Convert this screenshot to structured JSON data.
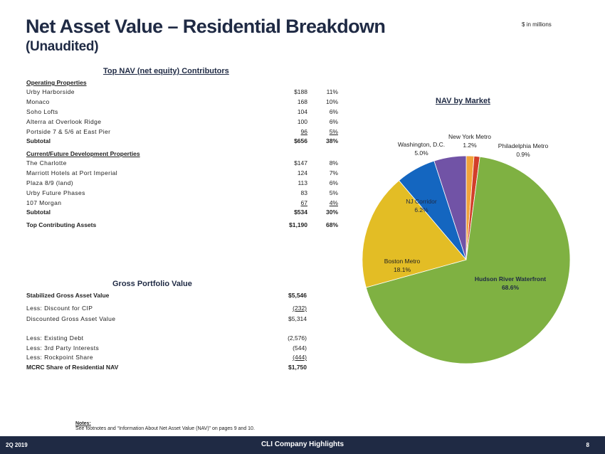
{
  "header": {
    "title": "Net Asset Value – Residential Breakdown",
    "subtitle": "(Unaudited)",
    "units": "$ in millions"
  },
  "contributors": {
    "heading": "Top NAV (net equity) Contributors",
    "operating": {
      "heading": "Operating Properties",
      "rows": [
        {
          "label": "Urby Harborside",
          "value": "$188",
          "pct": "11%"
        },
        {
          "label": "Monaco",
          "value": "168",
          "pct": "10%"
        },
        {
          "label": "Soho Lofts",
          "value": "104",
          "pct": "6%"
        },
        {
          "label": "Alterra at Overlook Ridge",
          "value": "100",
          "pct": "6%"
        },
        {
          "label": "Portside 7 & 5/6 at East Pier",
          "value": "96",
          "pct": "5%"
        }
      ],
      "subtotal": {
        "label": "Subtotal",
        "value": "$656",
        "pct": "38%"
      }
    },
    "development": {
      "heading": "Current/Future Development Properties",
      "rows": [
        {
          "label": "The Charlotte",
          "value": "$147",
          "pct": "8%"
        },
        {
          "label": "Marriott Hotels at Port Imperial",
          "value": "124",
          "pct": "7%"
        },
        {
          "label": "Plaza 8/9 (land)",
          "value": "113",
          "pct": "6%"
        },
        {
          "label": "Urby Future Phases",
          "value": "83",
          "pct": "5%"
        },
        {
          "label": "107 Morgan",
          "value": "67",
          "pct": "4%"
        }
      ],
      "subtotal": {
        "label": "Subtotal",
        "value": "$534",
        "pct": "30%"
      }
    },
    "total": {
      "label": "Top Contributing Assets",
      "value": "$1,190",
      "pct": "68%"
    }
  },
  "gross": {
    "heading": "Gross Portfolio Value",
    "rows": [
      {
        "label": "Stabilized Gross Asset Value",
        "value": "$5,546"
      },
      {
        "label": "Less: Discount for CIP",
        "value": "(232)"
      },
      {
        "label": "Discounted Gross Asset Value",
        "value": "$5,314"
      },
      {
        "label": "Less: Existing Debt",
        "value": "(2,576)"
      },
      {
        "label": "Less: 3rd Party Interests",
        "value": "(544)"
      },
      {
        "label": "Less: Rockpoint Share",
        "value": "(444)"
      },
      {
        "label": "MCRC Share of Residential NAV",
        "value": "$1,750"
      }
    ]
  },
  "chart_data": {
    "type": "pie",
    "title": "NAV by Market",
    "categories": [
      "New York Metro",
      "Philadelphia Metro",
      "Hudson River Waterfront",
      "Boston Metro",
      "NJ Corridor",
      "Washington, D.C."
    ],
    "values": [
      1.2,
      0.9,
      68.6,
      18.1,
      6.2,
      5.0
    ],
    "labels": [
      "1.2%",
      "0.9%",
      "68.6%",
      "18.1%",
      "6.2%",
      "5.0%"
    ],
    "colors": [
      "#f2a33a",
      "#d23f2a",
      "#7fb142",
      "#e3bd25",
      "#1466c0",
      "#7153a6"
    ]
  },
  "notes": {
    "heading": "Notes:",
    "text": "See footnotes and “Information About Net Asset Value (NAV)” on pages 9 and 10."
  },
  "footer": {
    "period": "2Q 2019",
    "center": "CLI Company Highlights",
    "page": "8"
  }
}
